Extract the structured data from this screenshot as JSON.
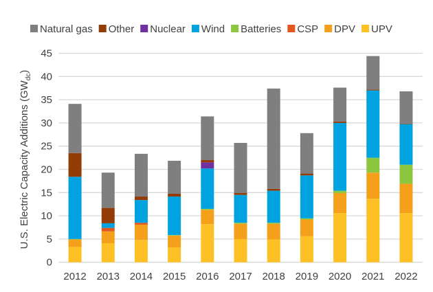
{
  "chart_data": {
    "type": "bar",
    "stacked": true,
    "ylabel_main": "U.S. Electric Capacity Additions (GW",
    "ylabel_subscript": "dc",
    "ylabel_close": ")",
    "ylim": [
      0,
      45
    ],
    "yticks": [
      0,
      5,
      10,
      15,
      20,
      25,
      30,
      35,
      40,
      45
    ],
    "grid": true,
    "legend_placement": "top",
    "categories": [
      "2012",
      "2013",
      "2014",
      "2015",
      "2016",
      "2017",
      "2018",
      "2019",
      "2020",
      "2021",
      "2022"
    ],
    "series": [
      {
        "name": "UPV",
        "color": "#fec125",
        "values": [
          3.3,
          4.1,
          4.8,
          3.2,
          8.2,
          5.0,
          4.9,
          5.6,
          10.6,
          13.7,
          10.6
        ]
      },
      {
        "name": "DPV",
        "color": "#f5a01a",
        "values": [
          1.6,
          2.55,
          3.3,
          2.55,
          3.1,
          3.3,
          3.4,
          3.6,
          4.3,
          5.6,
          6.3
        ]
      },
      {
        "name": "CSP",
        "color": "#e2571e",
        "values": [
          0,
          0.75,
          0.4,
          0,
          0,
          0,
          0,
          0,
          0,
          0,
          0
        ]
      },
      {
        "name": "Batteries",
        "color": "#8dc63f",
        "values": [
          0.1,
          0,
          0,
          0.1,
          0.2,
          0.2,
          0.2,
          0.25,
          0.5,
          3.2,
          4.1
        ]
      },
      {
        "name": "Wind",
        "color": "#00a3e0",
        "values": [
          13.4,
          1.0,
          4.9,
          8.3,
          8.7,
          6.0,
          6.9,
          9.25,
          14.6,
          14.5,
          8.75
        ]
      },
      {
        "name": "Nuclear",
        "color": "#7030a0",
        "values": [
          0,
          0,
          0,
          0,
          1.3,
          0,
          0,
          0,
          0,
          0,
          0
        ]
      },
      {
        "name": "Other",
        "color": "#933c06",
        "values": [
          5.1,
          3.3,
          0.75,
          0.6,
          0.5,
          0.4,
          0.4,
          0.4,
          0.3,
          0.2,
          0.1
        ]
      },
      {
        "name": "Natural gas",
        "color": "#7f7f7f",
        "values": [
          10.6,
          7.6,
          9.2,
          7.1,
          9.4,
          10.8,
          21.6,
          8.7,
          7.3,
          7.2,
          6.95
        ]
      }
    ],
    "legend_order": [
      "Natural gas",
      "Other",
      "Nuclear",
      "Wind",
      "Batteries",
      "CSP",
      "DPV",
      "UPV"
    ]
  }
}
